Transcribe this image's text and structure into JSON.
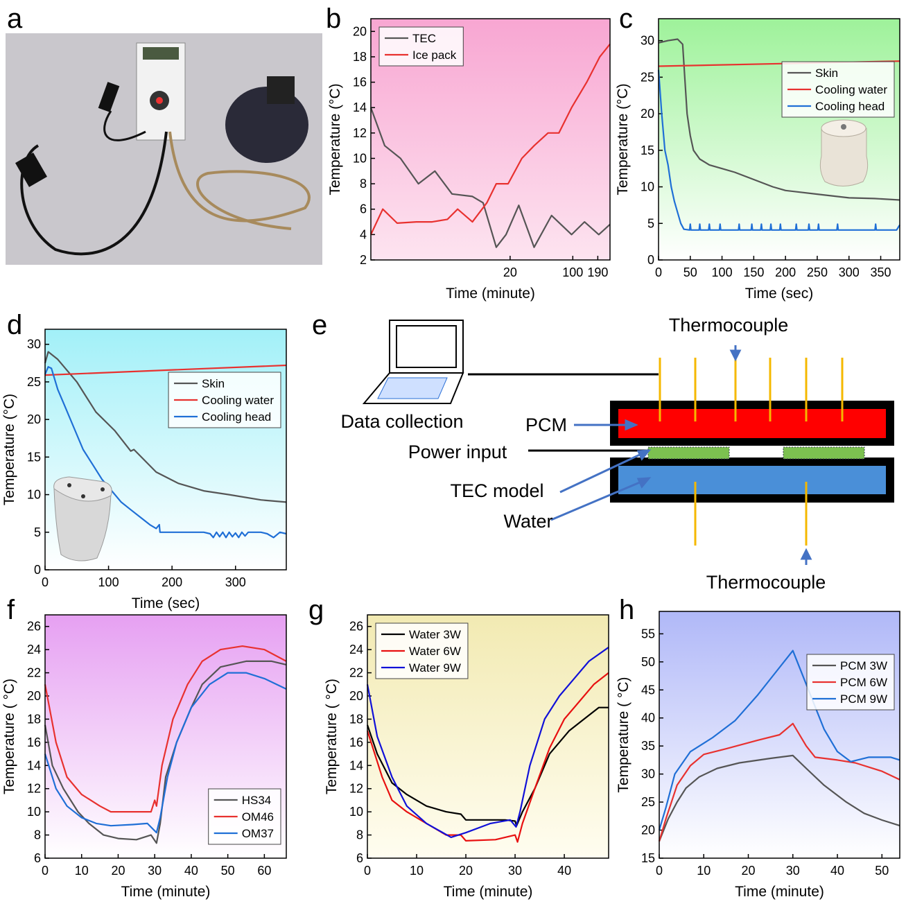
{
  "photo": {
    "panel": "a"
  },
  "diagram": {
    "panel": "e",
    "labels": {
      "thermocouple_top": "Thermocouple",
      "data_collection": "Data collection",
      "pcm": "PCM",
      "power_input": "Power input",
      "tec_model": "TEC model",
      "water": "Water",
      "thermocouple_bottom": "Thermocouple"
    }
  },
  "chart_data": [
    {
      "type": "line",
      "panel": "b",
      "x_label": "Time (minute)",
      "y_label": "Temperature (°C)",
      "xscale": "log",
      "xlim": [
        0.56,
        260
      ],
      "xticks": [
        20,
        100,
        190
      ],
      "ylim": [
        2,
        21
      ],
      "yticks": [
        2,
        4,
        6,
        8,
        10,
        12,
        14,
        16,
        18,
        20
      ],
      "background": [
        "#f8a6d2",
        "#fde4f0"
      ],
      "legend": "upper left",
      "series": [
        {
          "name": "TEC",
          "color": "#555555",
          "x": [
            0.56,
            0.8,
            1.2,
            1.9,
            2.9,
            4.5,
            7.6,
            10,
            14,
            18,
            25,
            31,
            37,
            58,
            97,
            135,
            195,
            260
          ],
          "values": [
            14,
            11,
            10,
            8,
            9,
            7.2,
            7,
            6.5,
            3,
            4,
            6.3,
            4.5,
            3,
            5.5,
            4,
            5,
            4,
            4.8
          ]
        },
        {
          "name": "Ice pack",
          "color": "#e8312f",
          "x": [
            0.56,
            0.76,
            1.1,
            1.8,
            2.7,
            4,
            5.2,
            7.6,
            11,
            14,
            19,
            27,
            37,
            53,
            70,
            97,
            143,
            200,
            260
          ],
          "values": [
            4,
            6,
            4.9,
            5,
            5,
            5.2,
            6,
            5,
            6.5,
            8,
            8,
            10,
            11,
            12,
            12,
            14,
            16,
            18,
            19
          ]
        }
      ]
    },
    {
      "type": "line",
      "panel": "c",
      "x_label": "Time (sec)",
      "y_label": "Temperature (°C)",
      "xlim": [
        0,
        380
      ],
      "xticks": [
        0,
        50,
        100,
        150,
        200,
        250,
        300,
        350
      ],
      "ylim": [
        0,
        33
      ],
      "yticks": [
        0,
        5,
        10,
        15,
        20,
        25,
        30
      ],
      "background": [
        "#9ef29a",
        "#ffffff"
      ],
      "legend": "upper right",
      "series": [
        {
          "name": "Skin",
          "color": "#555555",
          "x": [
            0,
            15,
            30,
            38,
            42,
            45,
            50,
            55,
            65,
            80,
            100,
            120,
            150,
            180,
            200,
            250,
            300,
            340,
            380
          ],
          "values": [
            29.7,
            30,
            30.2,
            29.5,
            24,
            20,
            17,
            15,
            13.8,
            13,
            12.5,
            12,
            11,
            10,
            9.5,
            9,
            8.5,
            8.4,
            8.2
          ]
        },
        {
          "name": "Cooling water",
          "color": "#e8312f",
          "x": [
            0,
            380
          ],
          "values": [
            26.5,
            27.2
          ]
        },
        {
          "name": "Cooling head",
          "color": "#1f6fd6",
          "x": [
            0,
            5,
            10,
            15,
            20,
            25,
            30,
            35,
            40,
            49,
            50,
            51,
            64,
            65,
            66,
            79,
            80,
            81,
            96,
            97,
            98,
            126,
            127,
            128,
            146,
            147,
            148,
            161,
            162,
            163,
            176,
            177,
            178,
            191,
            192,
            193,
            216,
            217,
            218,
            236,
            237,
            238,
            251,
            252,
            253,
            281,
            282,
            283,
            341,
            342,
            343,
            375,
            380
          ],
          "values": [
            26,
            20,
            15,
            13,
            10,
            8,
            6.5,
            5,
            4.2,
            4.1,
            4.9,
            4.1,
            4.1,
            4.9,
            4.1,
            4.1,
            4.9,
            4.1,
            4.1,
            4.9,
            4.1,
            4.1,
            4.9,
            4.1,
            4.1,
            4.9,
            4.1,
            4.1,
            4.9,
            4.1,
            4.1,
            4.9,
            4.1,
            4.1,
            4.9,
            4.1,
            4.1,
            4.9,
            4.1,
            4.1,
            4.9,
            4.1,
            4.1,
            4.9,
            4.1,
            4.1,
            4.9,
            4.1,
            4.1,
            4.9,
            4.1,
            4.1,
            4.8
          ]
        }
      ]
    },
    {
      "type": "line",
      "panel": "d",
      "x_label": "Time (sec)",
      "y_label": "Temperature (°C)",
      "xlim": [
        0,
        380
      ],
      "xticks": [
        0,
        100,
        200,
        300
      ],
      "ylim": [
        0,
        32
      ],
      "yticks": [
        0,
        5,
        10,
        15,
        20,
        25,
        30
      ],
      "background": [
        "#a2f0f8",
        "#ffffff"
      ],
      "legend": "upper right",
      "series": [
        {
          "name": "Skin",
          "color": "#555555",
          "x": [
            0,
            5,
            20,
            50,
            80,
            110,
            135,
            140,
            175,
            210,
            250,
            290,
            340,
            380
          ],
          "values": [
            27.5,
            29,
            28,
            25,
            21,
            18.5,
            15.8,
            16,
            13,
            11.5,
            10.5,
            10,
            9.3,
            9
          ]
        },
        {
          "name": "Cooling water",
          "color": "#e8312f",
          "x": [
            0,
            380
          ],
          "values": [
            25.9,
            27.2
          ]
        },
        {
          "name": "Cooling head",
          "color": "#1f6fd6",
          "x": [
            0,
            5,
            10,
            20,
            30,
            45,
            60,
            75,
            90,
            105,
            120,
            135,
            150,
            165,
            175,
            180,
            181,
            185,
            200,
            250,
            260,
            265,
            270,
            275,
            280,
            285,
            290,
            295,
            300,
            305,
            310,
            315,
            320,
            330,
            340,
            350,
            360,
            370,
            380
          ],
          "values": [
            26,
            27,
            26.8,
            24,
            22,
            19,
            16,
            14,
            12,
            10.5,
            9,
            8,
            7,
            6,
            5.5,
            6,
            5,
            5,
            5,
            5,
            4.8,
            4.3,
            5,
            4.4,
            5,
            4.3,
            5,
            4.4,
            4.9,
            4.3,
            5,
            4.5,
            5,
            5,
            5,
            4.8,
            4.3,
            5,
            4.8
          ]
        }
      ]
    },
    {
      "type": "line",
      "panel": "f",
      "x_label": "Time (minute)",
      "y_label": "Temperature ( °C)",
      "xlim": [
        0,
        66
      ],
      "xticks": [
        0,
        10,
        20,
        30,
        40,
        50,
        60
      ],
      "ylim": [
        6,
        27
      ],
      "yticks": [
        6,
        8,
        10,
        12,
        14,
        16,
        18,
        20,
        22,
        24,
        26
      ],
      "background": [
        "#e6a0f2",
        "#ffffff"
      ],
      "legend": "lower right",
      "series": [
        {
          "name": "HS34",
          "color": "#555555",
          "x": [
            0,
            2,
            5,
            9,
            12,
            16,
            20,
            25,
            29,
            30.5,
            31.5,
            33,
            36,
            40,
            43,
            48,
            55,
            62,
            66
          ],
          "values": [
            17.5,
            14,
            12,
            10,
            9,
            8,
            7.7,
            7.6,
            8,
            7.3,
            9,
            13,
            16,
            19,
            21,
            22.5,
            23,
            23,
            22.7
          ]
        },
        {
          "name": "OM46",
          "color": "#e8312f",
          "x": [
            0,
            3,
            6,
            10,
            15,
            18,
            25,
            29,
            30,
            30.5,
            32,
            35,
            39,
            43,
            48,
            54,
            60,
            66
          ],
          "values": [
            21,
            16,
            13,
            11.5,
            10.5,
            10,
            10,
            10,
            11,
            10.5,
            14,
            18,
            21,
            23,
            24,
            24.3,
            24,
            23
          ]
        },
        {
          "name": "OM37",
          "color": "#1f6fd6",
          "x": [
            0,
            3,
            6,
            10,
            14,
            18,
            24,
            28,
            30.5,
            31.5,
            33.5,
            36,
            40,
            45,
            50,
            55,
            60,
            66
          ],
          "values": [
            15,
            12,
            10.5,
            9.5,
            9,
            8.8,
            8.9,
            9,
            8.2,
            9.5,
            13,
            16,
            19,
            21,
            22,
            22,
            21.5,
            20.6
          ]
        }
      ]
    },
    {
      "type": "line",
      "panel": "g",
      "x_label": "Time (minute)",
      "y_label": "Temperature ( °C)",
      "xlim": [
        0,
        49
      ],
      "xticks": [
        0,
        10,
        20,
        30,
        40
      ],
      "ylim": [
        6,
        27
      ],
      "yticks": [
        6,
        8,
        10,
        12,
        14,
        16,
        18,
        20,
        22,
        24,
        26
      ],
      "background": [
        "#f2eab2",
        "#fffdf0"
      ],
      "legend": "upper left",
      "series": [
        {
          "name": "Water 3W",
          "color": "#000000",
          "x": [
            0,
            2,
            5,
            8,
            12,
            16,
            19,
            20,
            28,
            30,
            30.3,
            31.5,
            34,
            37,
            41,
            44,
            47,
            49
          ],
          "values": [
            17.5,
            15,
            12.5,
            11.5,
            10.5,
            10,
            9.8,
            9.3,
            9.3,
            9.2,
            8.8,
            10,
            12,
            15,
            17,
            18,
            19,
            19
          ]
        },
        {
          "name": "Water 6W",
          "color": "#e81010",
          "x": [
            0,
            3,
            5,
            8,
            12,
            16,
            19,
            20,
            26,
            30,
            30.5,
            31.5,
            34,
            37,
            40,
            43,
            46,
            49
          ],
          "values": [
            17,
            13,
            11,
            10,
            9,
            8,
            8,
            7.5,
            7.6,
            8,
            7.4,
            9,
            12,
            15.5,
            18,
            19.5,
            21,
            22
          ]
        },
        {
          "name": "Water 9W",
          "color": "#1010d8",
          "x": [
            0,
            2,
            5,
            8,
            12,
            17,
            20,
            25,
            29,
            30.2,
            31,
            33,
            36,
            39,
            42,
            45,
            49
          ],
          "values": [
            21,
            16.5,
            13,
            10.5,
            9,
            7.8,
            8.2,
            9,
            9.3,
            8.7,
            10,
            14,
            18,
            20,
            21.5,
            23,
            24.2
          ]
        }
      ]
    },
    {
      "type": "line",
      "panel": "h",
      "x_label": "Time (minute)",
      "y_label": "Temperature ( °C)",
      "xlim": [
        0,
        54
      ],
      "xticks": [
        0,
        10,
        20,
        30,
        40,
        50
      ],
      "ylim": [
        15,
        59
      ],
      "yticks": [
        15,
        20,
        25,
        30,
        35,
        40,
        45,
        50,
        55
      ],
      "background": [
        "#b0b8f8",
        "#ffffff"
      ],
      "legend": "upper right",
      "series": [
        {
          "name": "PCM 3W",
          "color": "#555555",
          "x": [
            0,
            2,
            4,
            6,
            9,
            13,
            18,
            25,
            30,
            33,
            37,
            42,
            46,
            50,
            54
          ],
          "values": [
            18,
            22,
            25,
            27.5,
            29.5,
            31,
            32,
            32.8,
            33.3,
            31,
            28,
            25,
            23,
            21.8,
            20.8
          ]
        },
        {
          "name": "PCM 6W",
          "color": "#e8312f",
          "x": [
            0,
            1.5,
            4,
            7,
            10,
            15,
            22,
            27,
            30,
            33,
            35,
            40,
            44,
            50,
            54
          ],
          "values": [
            18,
            22,
            28,
            31.5,
            33.5,
            34.5,
            36,
            37,
            39,
            35,
            33,
            32.5,
            32,
            30.5,
            29
          ]
        },
        {
          "name": "PCM 9W",
          "color": "#1f6fd6",
          "x": [
            0,
            1.5,
            3.5,
            7,
            12,
            17,
            22,
            26,
            30,
            31,
            34,
            37,
            40,
            43,
            47,
            52,
            54
          ],
          "values": [
            20,
            24,
            30,
            34,
            36.5,
            39.5,
            44,
            48,
            52,
            50,
            44,
            38,
            34,
            32.2,
            33,
            33,
            32.5
          ]
        }
      ]
    }
  ]
}
